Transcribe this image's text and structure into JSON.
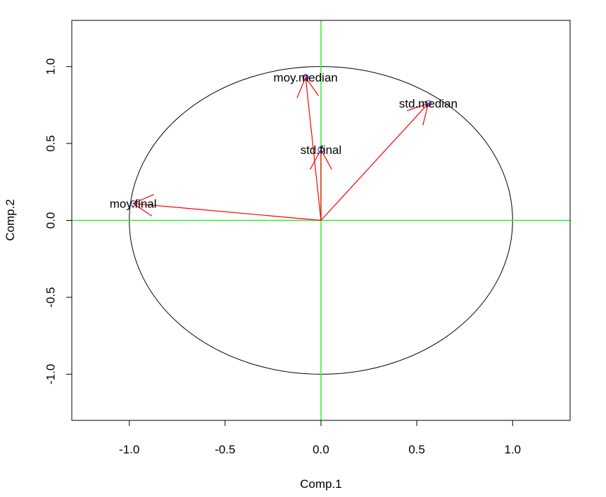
{
  "chart_data": {
    "type": "scatter",
    "subtype": "correlation-circle",
    "title": "",
    "xlabel": "Comp.1",
    "ylabel": "Comp.2",
    "xlim": [
      -1.3,
      1.3
    ],
    "ylim": [
      -1.3,
      1.3
    ],
    "xticks": [
      -1.0,
      -0.5,
      0.0,
      0.5,
      1.0
    ],
    "xtick_labels": [
      "-1.0",
      "-0.5",
      "0.0",
      "0.5",
      "1.0"
    ],
    "yticks": [
      -1.0,
      -0.5,
      0.0,
      0.5,
      1.0
    ],
    "ytick_labels": [
      "-1.0",
      "-0.5",
      "0.0",
      "0.5",
      "1.0"
    ],
    "grid": false,
    "unit_circle": true,
    "reference_lines": {
      "x": 0,
      "y": 0,
      "color": "#33ee33"
    },
    "arrow_color": "#ff0000",
    "point_color": "#3333cc",
    "circle_color": "#000000",
    "points": [
      {
        "label": "moy.final",
        "x": -0.98,
        "y": 0.11
      },
      {
        "label": "moy.median",
        "x": -0.08,
        "y": 0.93
      },
      {
        "label": "std.final",
        "x": 0.0,
        "y": 0.46
      },
      {
        "label": "std.median",
        "x": 0.56,
        "y": 0.76
      }
    ]
  }
}
